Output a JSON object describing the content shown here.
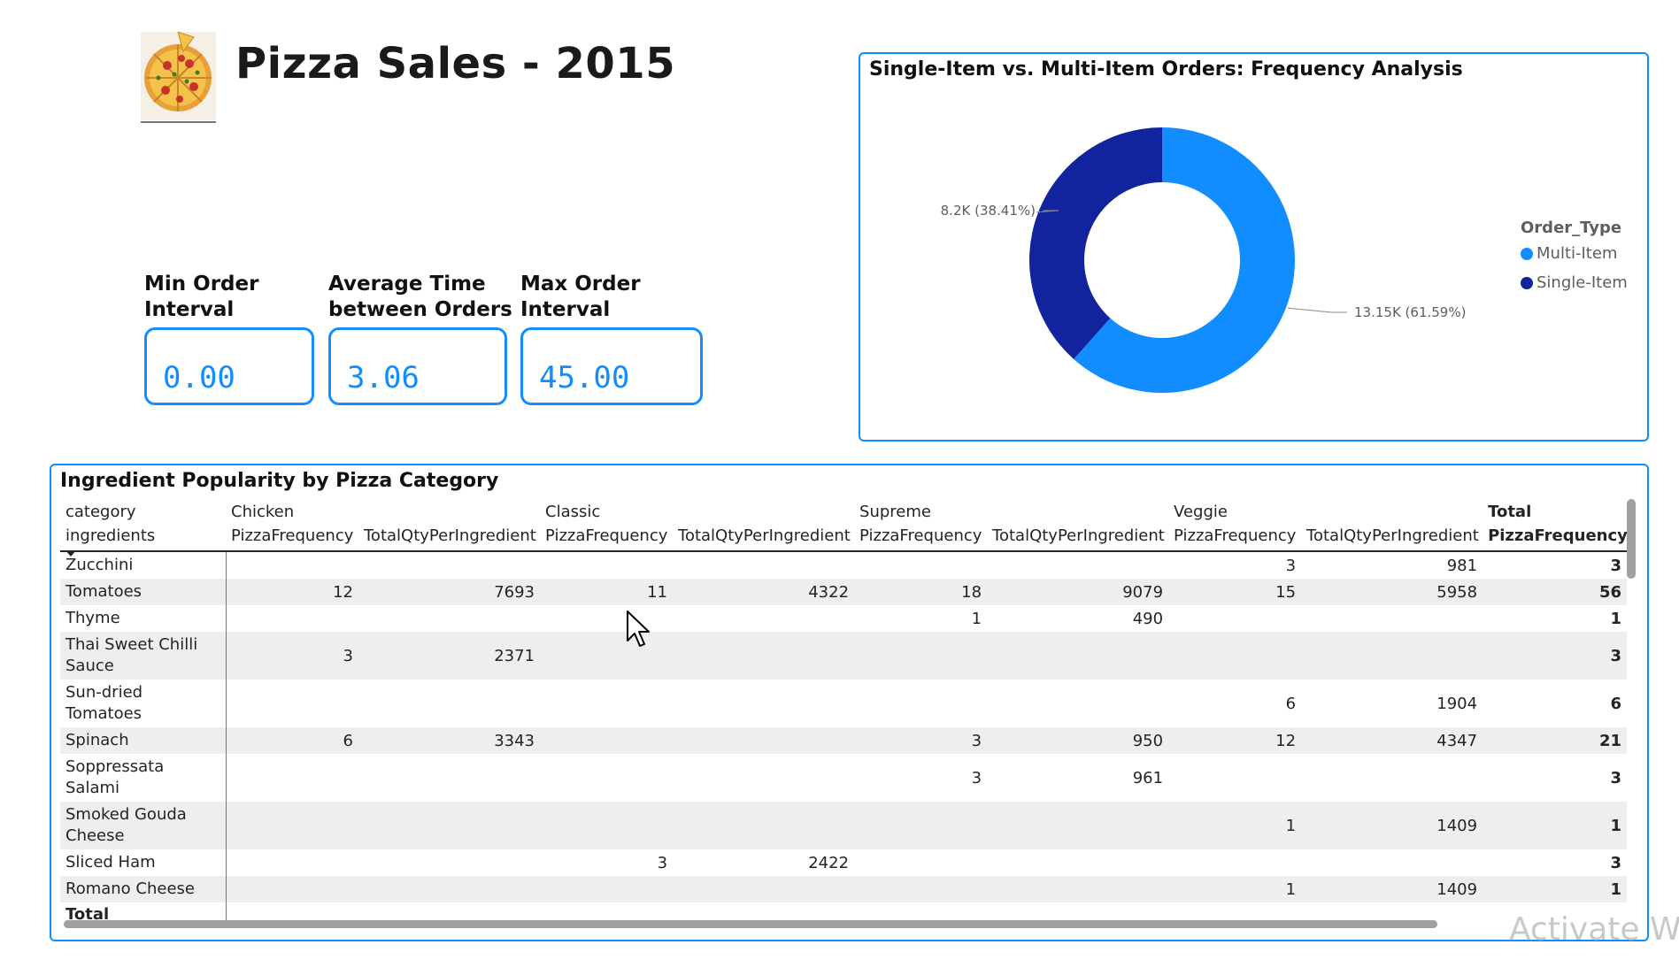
{
  "header": {
    "title": "Pizza Sales - 2015",
    "logo_icon": "pizza-icon"
  },
  "kpis": [
    {
      "label_line1": "Min Order",
      "label_line2": "Interval",
      "value": "0.00"
    },
    {
      "label_line1": "Average Time",
      "label_line2": "between Orders",
      "value": "3.06"
    },
    {
      "label_line1": "Max Order",
      "label_line2": "Interval",
      "value": "45.00"
    }
  ],
  "donut": {
    "title": "Single-Item vs. Multi-Item Orders: Frequency Analysis",
    "legend_title": "Order_Type",
    "chart_data": {
      "type": "pie",
      "variant": "donut",
      "title": "Single-Item vs. Multi-Item Orders: Frequency Analysis",
      "legend_title": "Order_Type",
      "legend_position": "right",
      "slices": [
        {
          "name": "Multi-Item",
          "value": 13150,
          "percent": 61.59,
          "label": "13.15K (61.59%)",
          "color": "#118dff"
        },
        {
          "name": "Single-Item",
          "value": 8200,
          "percent": 38.41,
          "label": "8.2K (38.41%)",
          "color": "#12239e"
        }
      ]
    }
  },
  "matrix": {
    "title": "Ingredient Popularity by Pizza Category",
    "row_header_top": "category",
    "row_header_bottom": "ingredients",
    "categories": [
      "Chicken",
      "Classic",
      "Supreme",
      "Veggie"
    ],
    "total_label": "Total",
    "col_freq": "PizzaFrequency",
    "col_qty": "TotalQtyPerIngredient",
    "rows": [
      {
        "ingredient": "Zucchini",
        "cells": [
          "",
          "",
          "",
          "",
          "",
          "",
          "3",
          "981"
        ],
        "total": "3"
      },
      {
        "ingredient": "Tomatoes",
        "cells": [
          "12",
          "7693",
          "11",
          "4322",
          "18",
          "9079",
          "15",
          "5958"
        ],
        "total": "56"
      },
      {
        "ingredient": "Thyme",
        "cells": [
          "",
          "",
          "",
          "",
          "1",
          "490",
          "",
          ""
        ],
        "total": "1"
      },
      {
        "ingredient": "Thai Sweet Chilli Sauce",
        "cells": [
          "3",
          "2371",
          "",
          "",
          "",
          "",
          "",
          ""
        ],
        "total": "3"
      },
      {
        "ingredient": "Sun-dried Tomatoes",
        "cells": [
          "",
          "",
          "",
          "",
          "",
          "",
          "6",
          "1904"
        ],
        "total": "6"
      },
      {
        "ingredient": "Spinach",
        "cells": [
          "6",
          "3343",
          "",
          "",
          "3",
          "950",
          "12",
          "4347"
        ],
        "total": "21"
      },
      {
        "ingredient": "Soppressata Salami",
        "cells": [
          "",
          "",
          "",
          "",
          "3",
          "961",
          "",
          ""
        ],
        "total": "3"
      },
      {
        "ingredient": "Smoked Gouda Cheese",
        "cells": [
          "",
          "",
          "",
          "",
          "",
          "",
          "1",
          "1409"
        ],
        "total": "1"
      },
      {
        "ingredient": "Sliced Ham",
        "cells": [
          "",
          "",
          "3",
          "2422",
          "",
          "",
          "",
          ""
        ],
        "total": "3"
      },
      {
        "ingredient": "Romano Cheese",
        "cells": [
          "",
          "",
          "",
          "",
          "",
          "",
          "1",
          "1409"
        ],
        "total": "1"
      }
    ],
    "footer_label": "Total"
  },
  "watermark": "Activate Wi",
  "colors": {
    "accent": "#118dff",
    "dark_series": "#12239e",
    "row_shade": "#eeeeee"
  }
}
